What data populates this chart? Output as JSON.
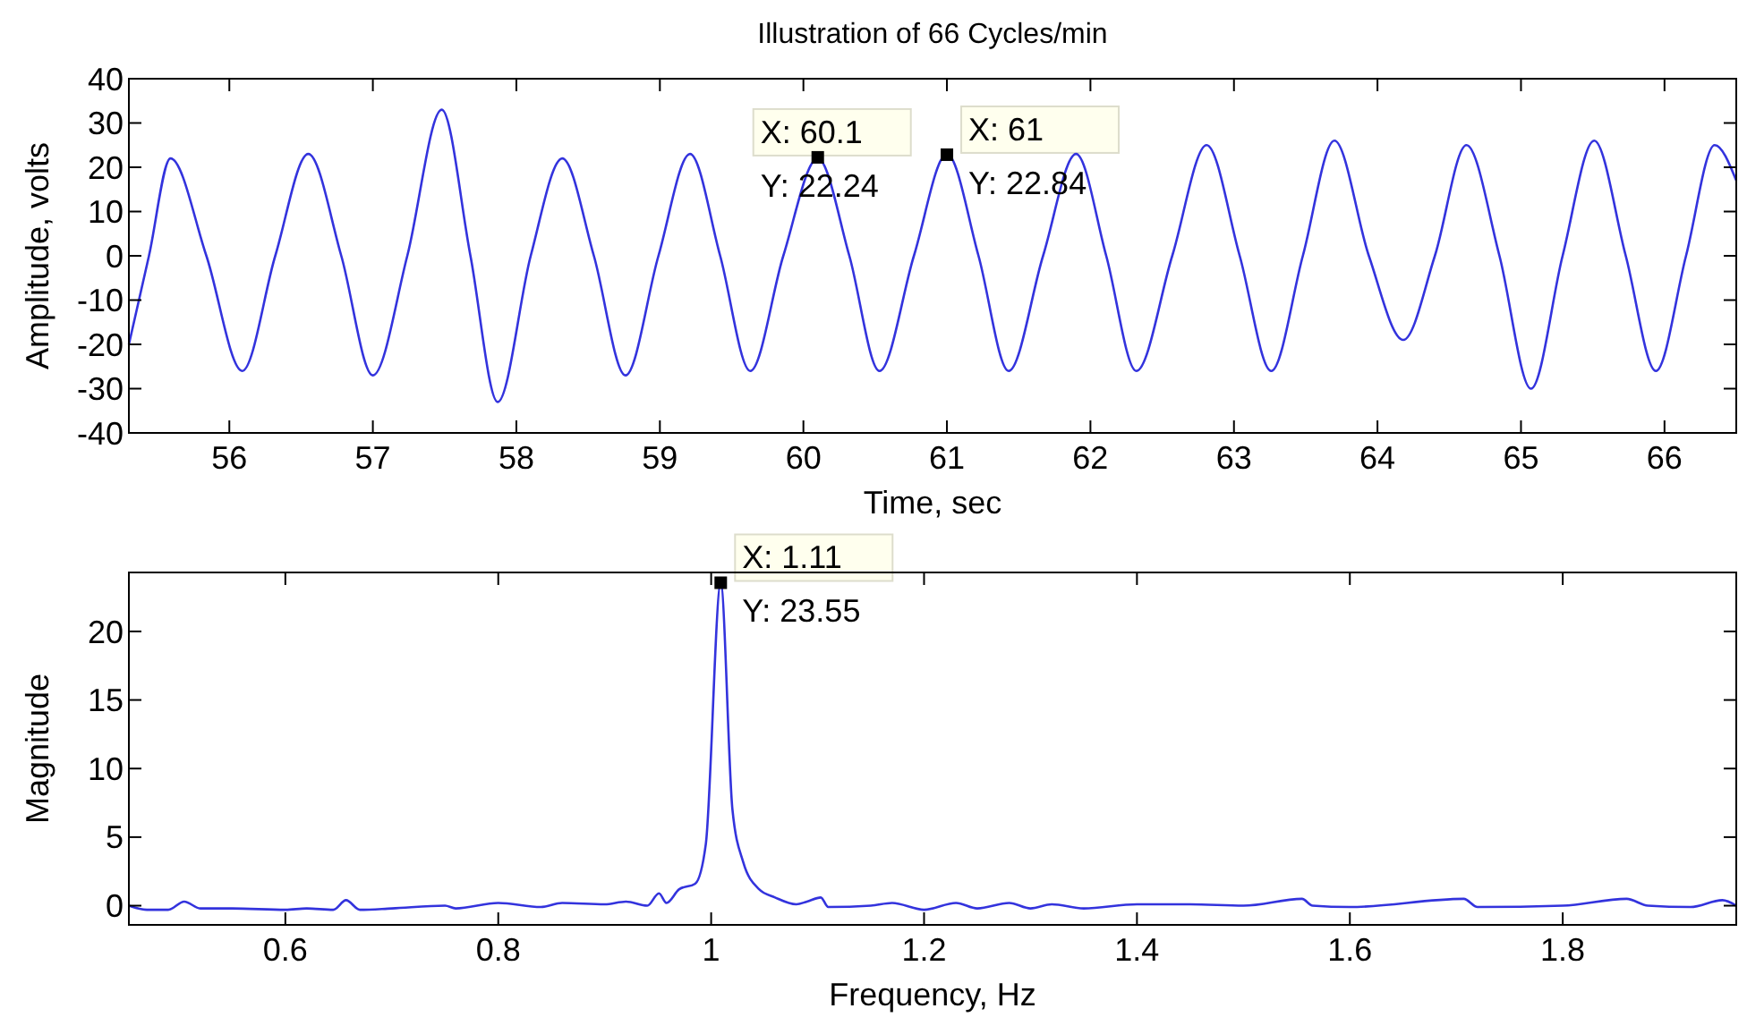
{
  "chart_data": [
    {
      "type": "line",
      "title": "Illustration of 66 Cycles/min",
      "xlabel": "Time, sec",
      "ylabel": "Amplitude, volts",
      "xlim": [
        55.3,
        66.5
      ],
      "xticks": [
        56,
        57,
        58,
        59,
        60,
        61,
        62,
        63,
        64,
        65,
        66
      ],
      "ylim": [
        -40,
        40
      ],
      "yticks": [
        -40,
        -30,
        -20,
        -10,
        0,
        10,
        20,
        30,
        40
      ],
      "grid": false,
      "annotations": [
        {
          "text": "X: 60.1\nY: 22.24",
          "x": 60.1,
          "y": 22.24
        },
        {
          "text": "X: 61\nY: 22.84",
          "x": 61,
          "y": 22.84
        }
      ],
      "series": [
        {
          "color": "#3333dd",
          "x": [
            55.3,
            55.44,
            55.59,
            55.84,
            56.09,
            56.32,
            56.55,
            56.78,
            57.0,
            57.24,
            57.48,
            57.68,
            57.87,
            58.1,
            58.32,
            58.54,
            58.76,
            58.99,
            59.21,
            59.42,
            59.63,
            59.86,
            60.1,
            60.32,
            60.53,
            60.77,
            61.0,
            61.22,
            61.43,
            61.67,
            61.9,
            62.11,
            62.32,
            62.57,
            62.81,
            63.04,
            63.26,
            63.48,
            63.7,
            63.94,
            64.18,
            64.4,
            64.62,
            64.85,
            65.07,
            65.29,
            65.51,
            65.73,
            65.94,
            66.15,
            66.35,
            66.5
          ],
          "values": [
            -20,
            0,
            22,
            0,
            -26,
            0,
            23,
            0,
            -27,
            0,
            33,
            0,
            -33,
            0,
            22,
            0,
            -27,
            0,
            23,
            0,
            -26,
            0,
            22,
            0,
            -26,
            0,
            23,
            0,
            -26,
            0,
            23,
            0,
            -26,
            0,
            25,
            0,
            -26,
            0,
            26,
            0,
            -19,
            0,
            25,
            0,
            -30,
            0,
            26,
            0,
            -26,
            0,
            25,
            17
          ]
        }
      ]
    },
    {
      "type": "line",
      "xlabel": "Frequency, Hz",
      "ylabel": "Magnitude",
      "xlim": [
        0.453,
        1.963
      ],
      "xticks": [
        0.6,
        0.8,
        1,
        1.2,
        1.4,
        1.6,
        1.8
      ],
      "ylim": [
        -1.4,
        24.3
      ],
      "yticks": [
        0,
        5,
        10,
        15,
        20
      ],
      "grid": false,
      "annotations": [
        {
          "text": "X: 1.11\nY: 23.55",
          "x": 1.009,
          "y": 23.55
        }
      ],
      "series": [
        {
          "color": "#3333dd",
          "x": [
            0.453,
            0.47,
            0.49,
            0.505,
            0.52,
            0.55,
            0.6,
            0.62,
            0.645,
            0.657,
            0.67,
            0.7,
            0.75,
            0.76,
            0.8,
            0.84,
            0.86,
            0.9,
            0.92,
            0.94,
            0.951,
            0.958,
            0.97,
            0.985,
            0.995,
            1.009,
            1.02,
            1.03,
            1.045,
            1.06,
            1.08,
            1.09,
            1.103,
            1.11,
            1.15,
            1.17,
            1.2,
            1.23,
            1.25,
            1.28,
            1.3,
            1.32,
            1.35,
            1.4,
            1.45,
            1.5,
            1.555,
            1.565,
            1.6,
            1.707,
            1.72,
            1.8,
            1.86,
            1.88,
            1.92,
            1.95,
            1.963
          ],
          "values": [
            0,
            -0.3,
            -0.3,
            0.3,
            -0.2,
            -0.2,
            -0.3,
            -0.2,
            -0.3,
            0.4,
            -0.3,
            -0.2,
            0,
            -0.2,
            0.2,
            -0.1,
            0.2,
            0.1,
            0.3,
            0,
            0.9,
            0.2,
            1.2,
            1.6,
            4.5,
            23.5,
            7,
            3.2,
            1.2,
            0.6,
            0.1,
            0.3,
            0.6,
            -0.1,
            0,
            0.2,
            -0.3,
            0.2,
            -0.2,
            0.2,
            -0.2,
            0.1,
            -0.2,
            0.1,
            0.1,
            0,
            0.5,
            0,
            -0.1,
            0.5,
            -0.1,
            0,
            0.5,
            0,
            -0.1,
            0.4,
            0
          ]
        }
      ]
    }
  ]
}
